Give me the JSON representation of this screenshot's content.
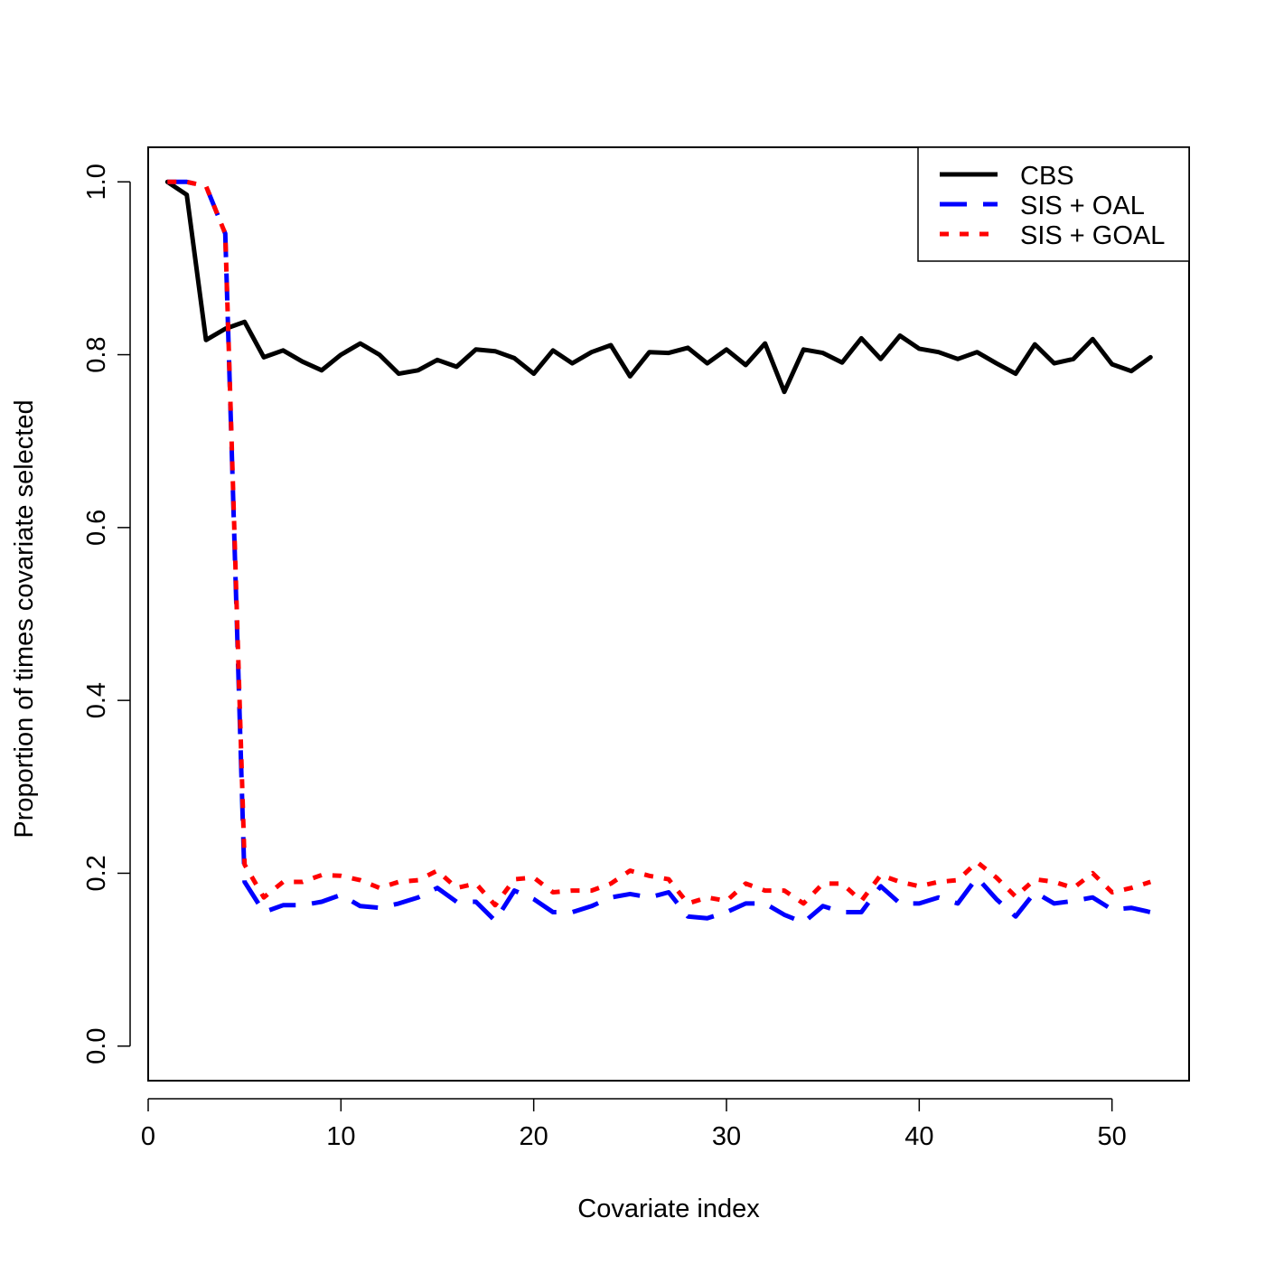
{
  "chart_data": {
    "type": "line",
    "title": "",
    "xlabel": "Covariate index",
    "ylabel": "Proportion of times covariate selected",
    "xlim": [
      0,
      54
    ],
    "ylim": [
      -0.04,
      1.04
    ],
    "xticks": [
      0,
      10,
      20,
      30,
      40,
      50
    ],
    "yticks": [
      0.0,
      0.2,
      0.4,
      0.6,
      0.8,
      1.0
    ],
    "xtick_labels": [
      "0",
      "10",
      "20",
      "30",
      "40",
      "50"
    ],
    "ytick_labels": [
      "0.0",
      "0.2",
      "0.4",
      "0.6",
      "0.8",
      "1.0"
    ],
    "grid": false,
    "legend_position": "top-right",
    "series": [
      {
        "name": "CBS",
        "color": "#000000",
        "style": "solid",
        "x": [
          1,
          2,
          3,
          4,
          5,
          6,
          7,
          8,
          9,
          10,
          11,
          12,
          13,
          14,
          15,
          16,
          17,
          18,
          19,
          20,
          21,
          22,
          23,
          24,
          25,
          26,
          27,
          28,
          29,
          30,
          31,
          32,
          33,
          34,
          35,
          36,
          37,
          38,
          39,
          40,
          41,
          42,
          43,
          44,
          45,
          46,
          47,
          48,
          49,
          50,
          51,
          52
        ],
        "y": [
          1.0,
          0.985,
          0.817,
          0.83,
          0.838,
          0.797,
          0.805,
          0.792,
          0.782,
          0.8,
          0.813,
          0.8,
          0.778,
          0.782,
          0.794,
          0.786,
          0.806,
          0.804,
          0.796,
          0.778,
          0.805,
          0.79,
          0.803,
          0.811,
          0.775,
          0.803,
          0.802,
          0.808,
          0.79,
          0.806,
          0.788,
          0.813,
          0.757,
          0.806,
          0.802,
          0.791,
          0.819,
          0.795,
          0.822,
          0.807,
          0.803,
          0.795,
          0.803,
          0.79,
          0.778,
          0.812,
          0.79,
          0.795,
          0.818,
          0.789,
          0.781,
          0.797
        ]
      },
      {
        "name": "SIS + OAL",
        "color": "#0000ff",
        "style": "dashed",
        "x": [
          1,
          2,
          3,
          4,
          5,
          6,
          7,
          8,
          9,
          10,
          11,
          12,
          13,
          14,
          15,
          16,
          17,
          18,
          19,
          20,
          21,
          22,
          23,
          24,
          25,
          26,
          27,
          28,
          29,
          30,
          31,
          32,
          33,
          34,
          35,
          36,
          37,
          38,
          39,
          40,
          41,
          42,
          43,
          44,
          45,
          46,
          47,
          48,
          49,
          50,
          51,
          52
        ],
        "y": [
          1.0,
          1.0,
          0.995,
          0.94,
          0.19,
          0.155,
          0.163,
          0.163,
          0.167,
          0.175,
          0.162,
          0.16,
          0.165,
          0.172,
          0.183,
          0.167,
          0.167,
          0.145,
          0.18,
          0.17,
          0.155,
          0.155,
          0.162,
          0.172,
          0.176,
          0.172,
          0.178,
          0.15,
          0.148,
          0.155,
          0.165,
          0.165,
          0.152,
          0.143,
          0.162,
          0.155,
          0.155,
          0.185,
          0.165,
          0.165,
          0.172,
          0.165,
          0.195,
          0.17,
          0.15,
          0.178,
          0.165,
          0.168,
          0.172,
          0.158,
          0.16,
          0.155
        ]
      },
      {
        "name": "SIS + GOAL",
        "color": "#ff0000",
        "style": "dotted",
        "x": [
          1,
          2,
          3,
          4,
          5,
          6,
          7,
          8,
          9,
          10,
          11,
          12,
          13,
          14,
          15,
          16,
          17,
          18,
          19,
          20,
          21,
          22,
          23,
          24,
          25,
          26,
          27,
          28,
          29,
          30,
          31,
          32,
          33,
          34,
          35,
          36,
          37,
          38,
          39,
          40,
          41,
          42,
          43,
          44,
          45,
          46,
          47,
          48,
          49,
          50,
          51,
          52
        ],
        "y": [
          1.0,
          1.0,
          0.995,
          0.94,
          0.21,
          0.172,
          0.19,
          0.19,
          0.198,
          0.197,
          0.192,
          0.183,
          0.19,
          0.192,
          0.203,
          0.183,
          0.188,
          0.163,
          0.193,
          0.195,
          0.178,
          0.18,
          0.18,
          0.188,
          0.203,
          0.197,
          0.193,
          0.165,
          0.172,
          0.168,
          0.188,
          0.18,
          0.18,
          0.165,
          0.188,
          0.188,
          0.168,
          0.198,
          0.19,
          0.185,
          0.19,
          0.192,
          0.213,
          0.195,
          0.173,
          0.193,
          0.19,
          0.183,
          0.2,
          0.178,
          0.183,
          0.19
        ]
      }
    ]
  }
}
